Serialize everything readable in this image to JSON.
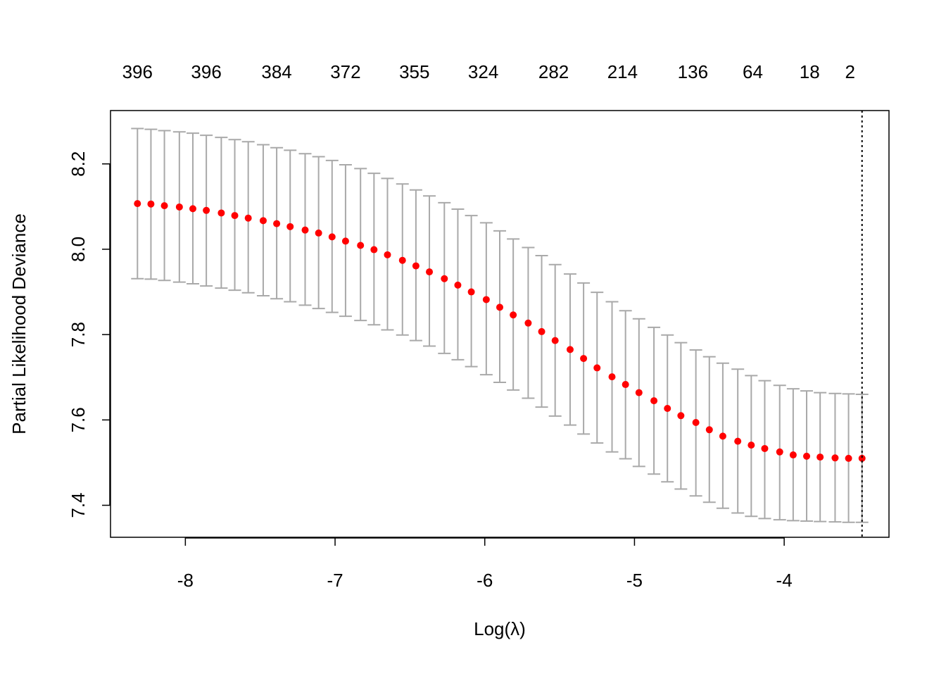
{
  "chart_data": {
    "type": "scatter",
    "title": "",
    "xlabel": "Log(λ)",
    "ylabel": "Partial Likelihood Deviance",
    "xlim": [
      -8.5,
      -3.3
    ],
    "ylim": [
      7.325,
      8.325
    ],
    "x_ticks": [
      -8,
      -7,
      -6,
      -5,
      -4
    ],
    "x_tick_labels": [
      "-8",
      "-7",
      "-6",
      "-5",
      "-4"
    ],
    "y_ticks": [
      7.4,
      7.6,
      7.8,
      8.0,
      8.2
    ],
    "y_tick_labels": [
      "7.4",
      "7.6",
      "7.8",
      "8.0",
      "8.2"
    ],
    "top_axis": {
      "x": [
        -8.32,
        -7.86,
        -7.39,
        -6.93,
        -6.47,
        -6.01,
        -5.54,
        -5.08,
        -4.61,
        -4.21,
        -3.83,
        -3.56
      ],
      "labels": [
        "396",
        "396",
        "384",
        "372",
        "355",
        "324",
        "282",
        "214",
        "136",
        "64",
        "18",
        "2"
      ]
    },
    "vline": {
      "x": -3.48,
      "style": "dotted"
    },
    "colors": {
      "point": "#ff0000",
      "errorbar": "#a9a9a9",
      "axis": "#000000"
    },
    "grid": false,
    "series": [
      {
        "x": [
          -8.32,
          -8.23,
          -8.14,
          -8.04,
          -7.95,
          -7.86,
          -7.76,
          -7.67,
          -7.58,
          -7.48,
          -7.39,
          -7.3,
          -7.2,
          -7.11,
          -7.02,
          -6.93,
          -6.83,
          -6.74,
          -6.65,
          -6.55,
          -6.46,
          -6.37,
          -6.27,
          -6.18,
          -6.09,
          -5.99,
          -5.9,
          -5.81,
          -5.71,
          -5.62,
          -5.53,
          -5.43,
          -5.34,
          -5.25,
          -5.15,
          -5.06,
          -4.97,
          -4.87,
          -4.78,
          -4.69,
          -4.59,
          -4.5,
          -4.41,
          -4.31,
          -4.22,
          -4.13,
          -4.03,
          -3.94,
          -3.85,
          -3.76,
          -3.66,
          -3.57,
          -3.48
        ],
        "y": [
          8.107,
          8.106,
          8.102,
          8.099,
          8.095,
          8.091,
          8.085,
          8.079,
          8.073,
          8.067,
          8.06,
          8.053,
          8.045,
          8.038,
          8.029,
          8.019,
          8.009,
          7.999,
          7.987,
          7.974,
          7.961,
          7.947,
          7.931,
          7.916,
          7.9,
          7.882,
          7.864,
          7.846,
          7.827,
          7.807,
          7.786,
          7.765,
          7.744,
          7.722,
          7.701,
          7.683,
          7.664,
          7.645,
          7.627,
          7.61,
          7.594,
          7.577,
          7.562,
          7.55,
          7.541,
          7.533,
          7.525,
          7.518,
          7.515,
          7.513,
          7.511,
          7.51,
          7.51
        ],
        "upper": [
          8.283,
          8.281,
          8.278,
          8.275,
          8.272,
          8.267,
          8.262,
          8.257,
          8.252,
          8.245,
          8.238,
          8.232,
          8.224,
          8.217,
          8.208,
          8.198,
          8.189,
          8.178,
          8.166,
          8.153,
          8.139,
          8.125,
          8.109,
          8.094,
          8.079,
          8.062,
          8.043,
          8.024,
          8.004,
          7.985,
          7.964,
          7.942,
          7.921,
          7.899,
          7.877,
          7.856,
          7.837,
          7.817,
          7.799,
          7.781,
          7.764,
          7.748,
          7.733,
          7.719,
          7.704,
          7.692,
          7.681,
          7.673,
          7.668,
          7.664,
          7.662,
          7.661,
          7.66
        ],
        "lower": [
          7.931,
          7.93,
          7.927,
          7.923,
          7.919,
          7.914,
          7.909,
          7.904,
          7.898,
          7.891,
          7.884,
          7.877,
          7.869,
          7.861,
          7.852,
          7.843,
          7.833,
          7.823,
          7.811,
          7.799,
          7.786,
          7.773,
          7.756,
          7.741,
          7.725,
          7.706,
          7.688,
          7.67,
          7.651,
          7.63,
          7.609,
          7.588,
          7.567,
          7.546,
          7.525,
          7.509,
          7.491,
          7.473,
          7.455,
          7.438,
          7.422,
          7.407,
          7.393,
          7.382,
          7.374,
          7.369,
          7.366,
          7.364,
          7.363,
          7.362,
          7.361,
          7.36,
          7.36
        ]
      }
    ]
  }
}
